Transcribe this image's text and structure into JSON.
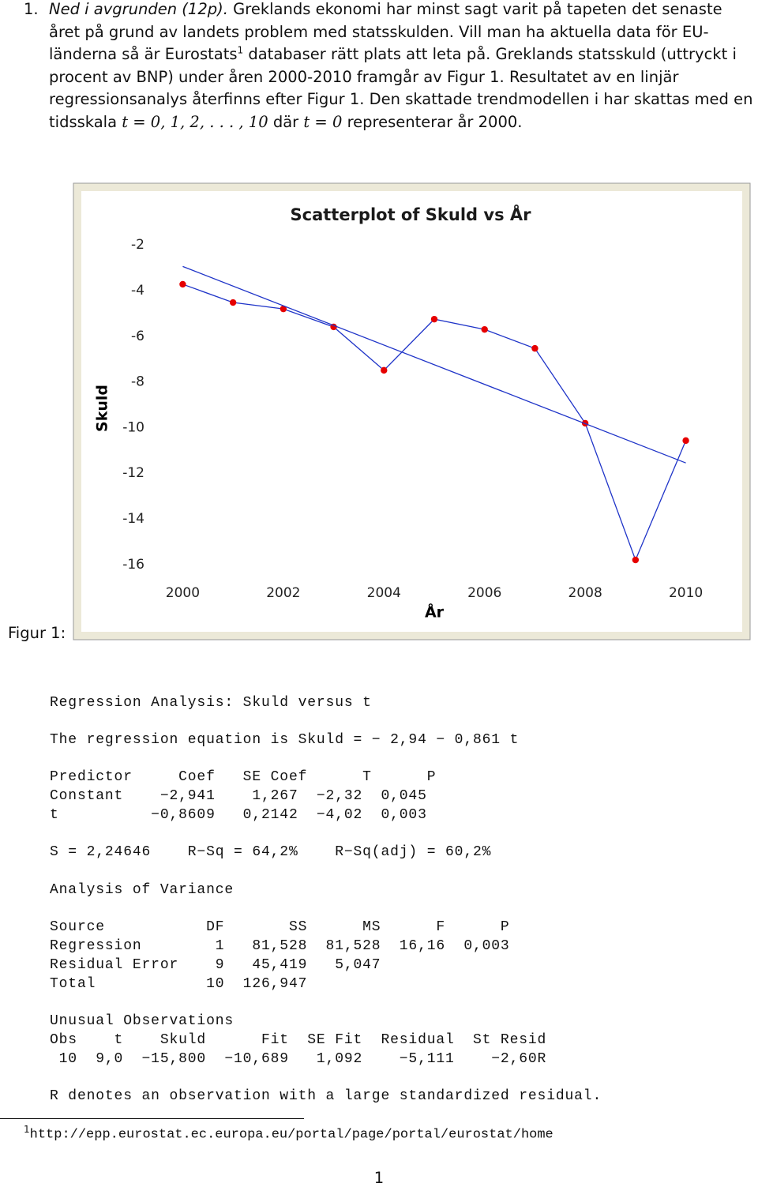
{
  "problem": {
    "number": "1.",
    "title": "Ned i avgrunden (12p).",
    "text_1": "Greklands ekonomi har minst sagt varit på tapeten det senaste året på grund av landets problem med statsskulden. Vill man ha aktuella data för EU-länderna så är Eurostats",
    "footnote_ref": "1",
    "text_2": "databaser rätt plats att leta på. Greklands statsskuld (uttryckt i procent av BNP) under åren 2000-2010 framgår av Figur 1. Resultatet av en linjär regressionsanalys återfinns efter Figur 1. Den skattade trendmodellen i har skattas med en tidsskala",
    "math_1": "t = 0, 1, 2, . . . , 10",
    "text_3": "där",
    "math_2": "t = 0",
    "text_4": "representerar år 2000."
  },
  "figure_label": "Figur 1:",
  "chart_data": {
    "type": "scatter",
    "title": "Scatterplot of Skuld vs År",
    "xlabel": "År",
    "ylabel": "Skuld",
    "x": [
      2000,
      2001,
      2002,
      2003,
      2004,
      2005,
      2006,
      2007,
      2008,
      2009,
      2010
    ],
    "series": [
      {
        "color": "#1f34c8",
        "marker_color": "#e60000",
        "values": [
          -3.72,
          -4.52,
          -4.8,
          -5.59,
          -7.49,
          -5.25,
          -5.7,
          -6.53,
          -9.81,
          -15.8,
          -10.57
        ]
      },
      {
        "color": "#1f34c8",
        "x": [
          2000,
          2010
        ],
        "values": [
          -2.94,
          -11.55
        ]
      }
    ],
    "xlim": [
      1999.35,
      2010.65
    ],
    "ylim": [
      -1.3,
      -16.7
    ],
    "xticks": [
      2000,
      2002,
      2004,
      2006,
      2008,
      2010
    ],
    "yticks": [
      -2,
      -4,
      -6,
      -8,
      -10,
      -12,
      -14,
      -16
    ],
    "grid": false
  },
  "output": {
    "lines": [
      "Regression Analysis: Skuld versus t",
      "The regression equation is Skuld = − 2,94 − 0,861 t",
      "Predictor     Coef   SE Coef      T      P",
      "Constant    −2,941    1,267  −2,32  0,045",
      "t          −0,8609   0,2142  −4,02  0,003",
      "S = 2,24646    R−Sq = 64,2%    R−Sq(adj) = 60,2%",
      "Analysis of Variance",
      "Source           DF       SS      MS      F      P",
      "Regression        1   81,528  81,528  16,16  0,003",
      "Residual Error    9   45,419   5,047",
      "Total            10  126,947",
      "Unusual Observations",
      "Obs    t    Skuld      Fit  SE Fit  Residual  St Resid",
      " 10  9,0  −15,800  −10,689   1,092    −5,111    −2,60R",
      "R denotes an observation with a large standardized residual."
    ]
  },
  "footnote": {
    "number": "1",
    "url": "http://epp.eurostat.ec.europa.eu/portal/page/portal/eurostat/home"
  },
  "page_number": "1"
}
